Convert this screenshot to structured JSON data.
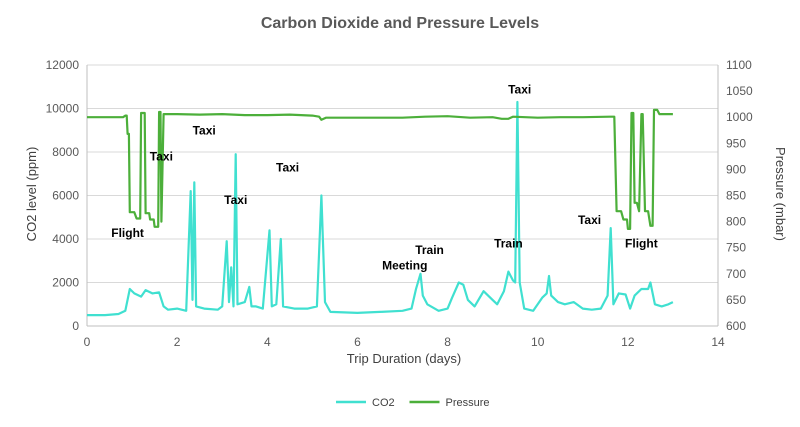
{
  "chart_data": {
    "type": "line",
    "title": "Carbon Dioxide and Pressure Levels",
    "xlabel": "Trip Duration (days)",
    "ylabel": "CO2 level (ppm)",
    "y2label": "Pressure (mbar)",
    "xlim": [
      0,
      14
    ],
    "ylim": [
      0,
      12000
    ],
    "y2lim": [
      600,
      1100
    ],
    "x_ticks": [
      "0",
      "2",
      "4",
      "6",
      "8",
      "10",
      "12",
      "14"
    ],
    "y_ticks": [
      "0",
      "2000",
      "4000",
      "6000",
      "8000",
      "10000",
      "12000"
    ],
    "y2_ticks": [
      "600",
      "650",
      "700",
      "750",
      "800",
      "850",
      "900",
      "950",
      "1000",
      "1050",
      "1100"
    ],
    "grid": "horizontal",
    "legend_position": "bottom",
    "series": [
      {
        "name": "CO2",
        "axis": "left",
        "color": "#40E0D0",
        "points": [
          [
            0,
            500
          ],
          [
            0.4,
            500
          ],
          [
            0.7,
            550
          ],
          [
            0.85,
            700
          ],
          [
            0.95,
            1700
          ],
          [
            1.05,
            1500
          ],
          [
            1.2,
            1350
          ],
          [
            1.3,
            1650
          ],
          [
            1.45,
            1500
          ],
          [
            1.6,
            1550
          ],
          [
            1.7,
            900
          ],
          [
            1.8,
            750
          ],
          [
            2.0,
            800
          ],
          [
            2.2,
            700
          ],
          [
            2.3,
            6200
          ],
          [
            2.34,
            1200
          ],
          [
            2.38,
            6600
          ],
          [
            2.42,
            900
          ],
          [
            2.6,
            800
          ],
          [
            2.9,
            750
          ],
          [
            3.0,
            900
          ],
          [
            3.1,
            3900
          ],
          [
            3.15,
            1100
          ],
          [
            3.2,
            2700
          ],
          [
            3.25,
            900
          ],
          [
            3.3,
            7900
          ],
          [
            3.34,
            1000
          ],
          [
            3.5,
            1100
          ],
          [
            3.6,
            1800
          ],
          [
            3.65,
            900
          ],
          [
            3.75,
            900
          ],
          [
            3.9,
            800
          ],
          [
            4.05,
            4400
          ],
          [
            4.1,
            900
          ],
          [
            4.2,
            1000
          ],
          [
            4.3,
            4000
          ],
          [
            4.35,
            900
          ],
          [
            4.6,
            800
          ],
          [
            4.9,
            800
          ],
          [
            5.1,
            900
          ],
          [
            5.2,
            6000
          ],
          [
            5.28,
            1100
          ],
          [
            5.4,
            650
          ],
          [
            6.0,
            600
          ],
          [
            6.5,
            650
          ],
          [
            7.0,
            700
          ],
          [
            7.2,
            800
          ],
          [
            7.3,
            1700
          ],
          [
            7.4,
            2400
          ],
          [
            7.45,
            1400
          ],
          [
            7.55,
            1000
          ],
          [
            7.8,
            700
          ],
          [
            8.0,
            800
          ],
          [
            8.1,
            1300
          ],
          [
            8.25,
            2000
          ],
          [
            8.35,
            1900
          ],
          [
            8.45,
            1200
          ],
          [
            8.6,
            900
          ],
          [
            8.8,
            1600
          ],
          [
            9.0,
            1200
          ],
          [
            9.1,
            1000
          ],
          [
            9.25,
            1600
          ],
          [
            9.35,
            2500
          ],
          [
            9.45,
            2100
          ],
          [
            9.5,
            2000
          ],
          [
            9.55,
            10300
          ],
          [
            9.6,
            2000
          ],
          [
            9.7,
            800
          ],
          [
            9.9,
            700
          ],
          [
            10.1,
            1300
          ],
          [
            10.2,
            1500
          ],
          [
            10.25,
            2300
          ],
          [
            10.3,
            1400
          ],
          [
            10.45,
            1100
          ],
          [
            10.6,
            1000
          ],
          [
            10.8,
            1100
          ],
          [
            11.0,
            800
          ],
          [
            11.2,
            750
          ],
          [
            11.4,
            800
          ],
          [
            11.55,
            1400
          ],
          [
            11.62,
            4500
          ],
          [
            11.68,
            1000
          ],
          [
            11.8,
            1500
          ],
          [
            11.95,
            1450
          ],
          [
            12.05,
            800
          ],
          [
            12.15,
            1400
          ],
          [
            12.3,
            1700
          ],
          [
            12.45,
            1700
          ],
          [
            12.5,
            2000
          ],
          [
            12.6,
            1000
          ],
          [
            12.75,
            900
          ],
          [
            12.9,
            1000
          ],
          [
            13.0,
            1100
          ]
        ]
      },
      {
        "name": "Pressure",
        "axis": "right",
        "color": "#4CAF3A",
        "points": [
          [
            0,
            1000
          ],
          [
            0.8,
            1000
          ],
          [
            0.85,
            1003
          ],
          [
            0.88,
            1003
          ],
          [
            0.9,
            968
          ],
          [
            0.93,
            968
          ],
          [
            0.95,
            818
          ],
          [
            1.05,
            818
          ],
          [
            1.1,
            806
          ],
          [
            1.18,
            806
          ],
          [
            1.2,
            1008
          ],
          [
            1.28,
            1008
          ],
          [
            1.3,
            816
          ],
          [
            1.38,
            816
          ],
          [
            1.4,
            804
          ],
          [
            1.48,
            804
          ],
          [
            1.5,
            790
          ],
          [
            1.58,
            790
          ],
          [
            1.6,
            1010
          ],
          [
            1.63,
            1010
          ],
          [
            1.65,
            800
          ],
          [
            1.7,
            1006
          ],
          [
            2.0,
            1006
          ],
          [
            2.5,
            1005
          ],
          [
            3.0,
            1006
          ],
          [
            3.5,
            1004
          ],
          [
            4.0,
            1004
          ],
          [
            4.5,
            1005
          ],
          [
            5.0,
            1003
          ],
          [
            5.15,
            1001
          ],
          [
            5.2,
            995
          ],
          [
            5.3,
            999
          ],
          [
            6.0,
            999
          ],
          [
            6.5,
            999
          ],
          [
            7.0,
            999
          ],
          [
            7.5,
            1001
          ],
          [
            8.0,
            1002
          ],
          [
            8.5,
            999
          ],
          [
            9.0,
            1000
          ],
          [
            9.2,
            997
          ],
          [
            9.35,
            997
          ],
          [
            9.45,
            1001
          ],
          [
            10.0,
            999
          ],
          [
            10.5,
            1000
          ],
          [
            11.0,
            1000
          ],
          [
            11.6,
            1001
          ],
          [
            11.7,
            1001
          ],
          [
            11.75,
            820
          ],
          [
            11.85,
            820
          ],
          [
            11.9,
            804
          ],
          [
            11.98,
            804
          ],
          [
            12.0,
            786
          ],
          [
            12.05,
            786
          ],
          [
            12.08,
            1008
          ],
          [
            12.12,
            1008
          ],
          [
            12.15,
            836
          ],
          [
            12.2,
            836
          ],
          [
            12.25,
            820
          ],
          [
            12.3,
            1006
          ],
          [
            12.33,
            1006
          ],
          [
            12.38,
            820
          ],
          [
            12.45,
            820
          ],
          [
            12.5,
            792
          ],
          [
            12.55,
            792
          ],
          [
            12.58,
            1014
          ],
          [
            12.65,
            1014
          ],
          [
            12.7,
            1006
          ],
          [
            13.0,
            1006
          ]
        ]
      }
    ],
    "annotations": [
      {
        "text": "Flight",
        "x": 0.9,
        "y": 4100
      },
      {
        "text": "Taxi",
        "x": 1.65,
        "y": 7600
      },
      {
        "text": "Taxi",
        "x": 2.6,
        "y": 8800
      },
      {
        "text": "Taxi",
        "x": 3.3,
        "y": 5600
      },
      {
        "text": "Taxi",
        "x": 4.45,
        "y": 7100
      },
      {
        "text": "Meeting",
        "x": 7.05,
        "y": 2600
      },
      {
        "text": "Train",
        "x": 7.6,
        "y": 3300
      },
      {
        "text": "Train",
        "x": 9.35,
        "y": 3600
      },
      {
        "text": "Taxi",
        "x": 9.6,
        "y": 10700
      },
      {
        "text": "Taxi",
        "x": 11.15,
        "y": 4700
      },
      {
        "text": "Flight",
        "x": 12.3,
        "y": 3600
      }
    ]
  }
}
